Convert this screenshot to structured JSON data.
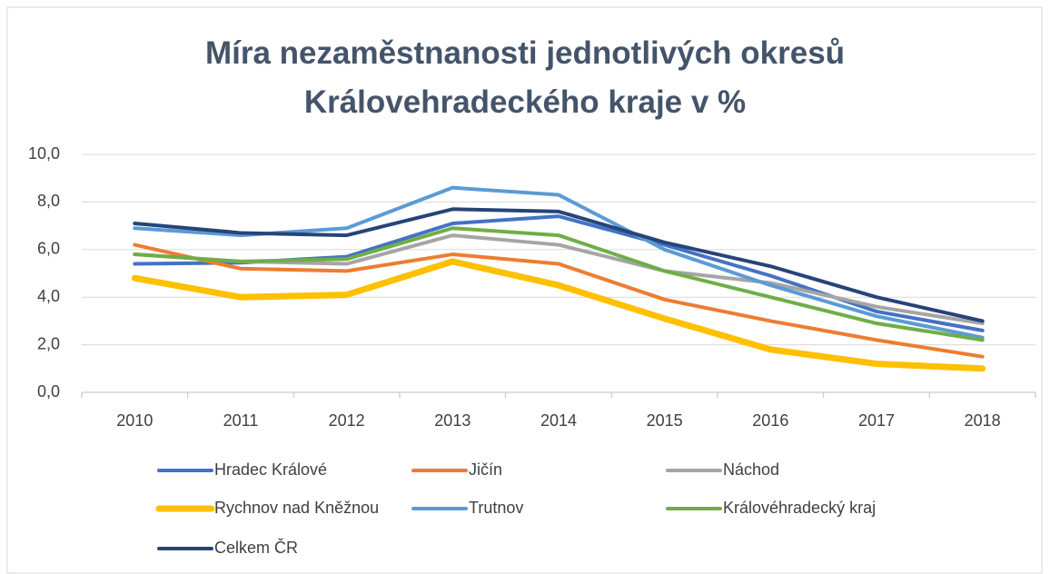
{
  "chart_data": {
    "type": "line",
    "title": "Míra nezaměstnanosti jednotlivých okresů Královehradeckého kraje v %",
    "categories": [
      "2010",
      "2011",
      "2012",
      "2013",
      "2014",
      "2015",
      "2016",
      "2017",
      "2018"
    ],
    "ylim": [
      0,
      10
    ],
    "yticks": [
      {
        "value": 0,
        "label": "0,0"
      },
      {
        "value": 2,
        "label": "2,0"
      },
      {
        "value": 4,
        "label": "4,0"
      },
      {
        "value": 6,
        "label": "6,0"
      },
      {
        "value": 8,
        "label": "8,0"
      },
      {
        "value": 10,
        "label": "10,0"
      }
    ],
    "grid": true,
    "legend": "bottom",
    "series": [
      {
        "name": "Hradec Králové",
        "color": "#4472c4",
        "line_width": 4,
        "values": [
          5.4,
          5.45,
          5.7,
          7.1,
          7.4,
          6.2,
          4.9,
          3.4,
          2.6
        ]
      },
      {
        "name": "Jičín",
        "color": "#ed7d31",
        "line_width": 4,
        "values": [
          6.2,
          5.2,
          5.1,
          5.8,
          5.4,
          3.9,
          3.0,
          2.2,
          1.5
        ]
      },
      {
        "name": "Náchod",
        "color": "#a5a5a5",
        "line_width": 4,
        "values": [
          5.8,
          5.5,
          5.4,
          6.6,
          6.2,
          5.1,
          4.6,
          3.6,
          2.9
        ]
      },
      {
        "name": "Rychnov nad Kněžnou",
        "color": "#ffc000",
        "line_width": 7,
        "values": [
          4.8,
          4.0,
          4.1,
          5.5,
          4.5,
          3.1,
          1.8,
          1.2,
          1.0
        ]
      },
      {
        "name": "Trutnov",
        "color": "#5b9bd5",
        "line_width": 4,
        "values": [
          6.9,
          6.6,
          6.9,
          8.6,
          8.3,
          6.0,
          4.5,
          3.2,
          2.3
        ]
      },
      {
        "name": "Královéhradecký kraj",
        "color": "#70ad47",
        "line_width": 4,
        "values": [
          5.8,
          5.5,
          5.6,
          6.9,
          6.6,
          5.1,
          4.0,
          2.9,
          2.2
        ]
      },
      {
        "name": "Celkem ČR",
        "color": "#264478",
        "line_width": 4,
        "values": [
          7.1,
          6.7,
          6.6,
          7.7,
          7.6,
          6.3,
          5.3,
          4.0,
          3.0
        ]
      }
    ]
  }
}
